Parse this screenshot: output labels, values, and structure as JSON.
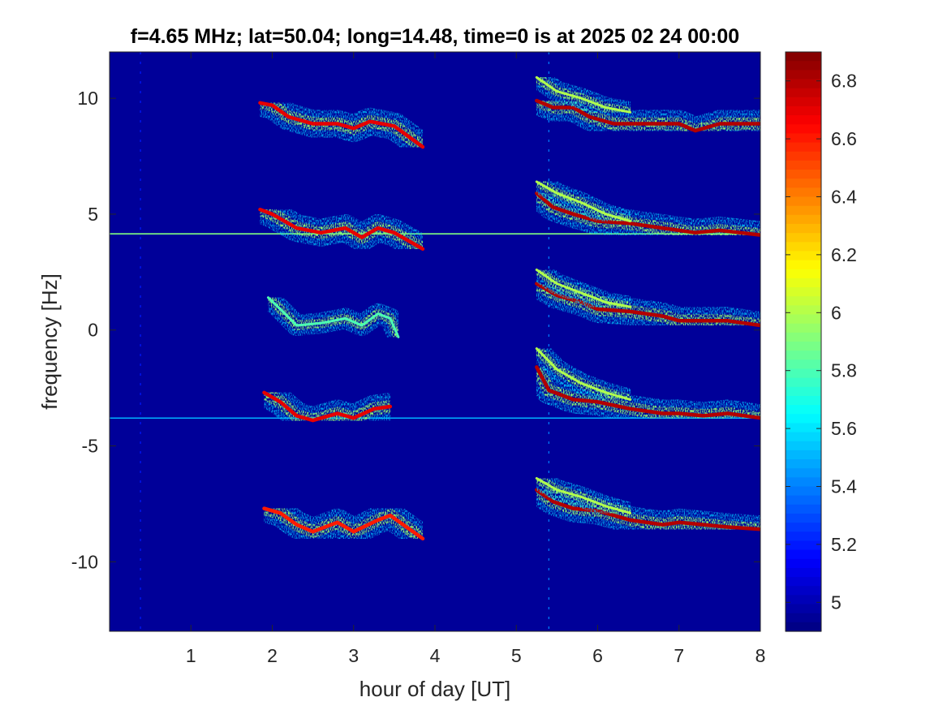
{
  "chart_data": {
    "type": "heatmap",
    "title": "f=4.65 MHz;  lat=50.04; long=14.48, time=0 is at 2025 02 24 00:00",
    "xlabel": "hour of day [UT]",
    "ylabel": "frequency [Hz]",
    "xlim": [
      0,
      8
    ],
    "ylim": [
      -13,
      12
    ],
    "x_ticks": [
      1,
      2,
      3,
      4,
      5,
      6,
      7,
      8
    ],
    "y_ticks": [
      10,
      5,
      0,
      -5,
      -10
    ],
    "colorbar": {
      "range": [
        4.9,
        6.9
      ],
      "ticks": [
        5,
        5.2,
        5.4,
        5.6,
        5.8,
        6,
        6.2,
        6.4,
        6.6,
        6.8
      ],
      "colormap": "jet"
    },
    "background_value": 4.95,
    "horizontal_lines": [
      {
        "y": 4.15,
        "value": 5.9
      },
      {
        "y": -3.8,
        "value": 5.5
      }
    ],
    "vertical_lines": [
      {
        "x": 5.4,
        "value": 5.4
      },
      {
        "x": 0.38,
        "value": 5.2
      }
    ],
    "traces": [
      {
        "name": "",
        "points": [
          [
            1.85,
            9.8
          ],
          [
            2.0,
            9.7
          ],
          [
            2.2,
            9.2
          ],
          [
            2.5,
            8.9
          ],
          [
            2.8,
            8.9
          ],
          [
            3.0,
            8.7
          ],
          [
            3.2,
            9.0
          ],
          [
            3.5,
            8.8
          ],
          [
            3.85,
            7.9
          ]
        ],
        "value": 6.7
      },
      {
        "name": "",
        "points": [
          [
            1.85,
            5.2
          ],
          [
            2.0,
            5.0
          ],
          [
            2.3,
            4.4
          ],
          [
            2.6,
            4.2
          ],
          [
            2.9,
            4.4
          ],
          [
            3.1,
            4.0
          ],
          [
            3.3,
            4.4
          ],
          [
            3.5,
            4.2
          ],
          [
            3.85,
            3.5
          ]
        ],
        "value": 6.7
      },
      {
        "name": "",
        "points": [
          [
            1.95,
            1.4
          ],
          [
            2.1,
            0.9
          ],
          [
            2.3,
            0.2
          ],
          [
            2.6,
            0.3
          ],
          [
            2.9,
            0.5
          ],
          [
            3.1,
            0.2
          ],
          [
            3.3,
            0.7
          ],
          [
            3.45,
            0.5
          ],
          [
            3.55,
            -0.3
          ]
        ],
        "value": 5.8
      },
      {
        "name": "",
        "points": [
          [
            1.9,
            -2.7
          ],
          [
            2.1,
            -3.1
          ],
          [
            2.3,
            -3.7
          ],
          [
            2.5,
            -3.9
          ],
          [
            2.8,
            -3.6
          ],
          [
            3.0,
            -3.8
          ],
          [
            3.25,
            -3.4
          ],
          [
            3.45,
            -3.3
          ]
        ],
        "value": 6.7
      },
      {
        "name": "",
        "points": [
          [
            1.9,
            -7.7
          ],
          [
            2.1,
            -7.9
          ],
          [
            2.3,
            -8.4
          ],
          [
            2.5,
            -8.7
          ],
          [
            2.8,
            -8.3
          ],
          [
            3.0,
            -8.7
          ],
          [
            3.3,
            -8.2
          ],
          [
            3.45,
            -8.0
          ],
          [
            3.85,
            -9.0
          ]
        ],
        "value": 6.6
      },
      {
        "name": "",
        "points": [
          [
            5.25,
            9.9
          ],
          [
            5.45,
            9.6
          ],
          [
            5.7,
            9.6
          ],
          [
            5.9,
            9.2
          ],
          [
            6.2,
            8.9
          ],
          [
            6.6,
            8.9
          ],
          [
            7.0,
            8.9
          ],
          [
            7.2,
            8.6
          ],
          [
            7.5,
            8.9
          ],
          [
            8.0,
            8.9
          ]
        ],
        "value": 6.8
      },
      {
        "name": "",
        "points": [
          [
            5.25,
            5.9
          ],
          [
            5.45,
            5.3
          ],
          [
            5.7,
            5.0
          ],
          [
            6.0,
            4.7
          ],
          [
            6.4,
            4.6
          ],
          [
            6.8,
            4.4
          ],
          [
            7.0,
            4.3
          ],
          [
            7.2,
            4.2
          ],
          [
            7.5,
            4.3
          ],
          [
            8.0,
            4.1
          ]
        ],
        "value": 6.8
      },
      {
        "name": "",
        "points": [
          [
            5.25,
            2.0
          ],
          [
            5.5,
            1.5
          ],
          [
            5.8,
            1.2
          ],
          [
            6.0,
            0.9
          ],
          [
            6.4,
            0.8
          ],
          [
            6.8,
            0.6
          ],
          [
            7.0,
            0.4
          ],
          [
            7.3,
            0.4
          ],
          [
            7.6,
            0.4
          ],
          [
            8.0,
            0.2
          ]
        ],
        "value": 6.8
      },
      {
        "name": "",
        "points": [
          [
            5.25,
            -1.6
          ],
          [
            5.4,
            -2.6
          ],
          [
            5.7,
            -3.0
          ],
          [
            6.0,
            -3.1
          ],
          [
            6.4,
            -3.4
          ],
          [
            6.8,
            -3.6
          ],
          [
            7.0,
            -3.6
          ],
          [
            7.3,
            -3.7
          ],
          [
            7.6,
            -3.6
          ],
          [
            8.0,
            -3.8
          ]
        ],
        "value": 6.8
      },
      {
        "name": "",
        "points": [
          [
            5.25,
            -6.9
          ],
          [
            5.45,
            -7.4
          ],
          [
            5.7,
            -7.7
          ],
          [
            6.0,
            -7.8
          ],
          [
            6.4,
            -8.2
          ],
          [
            6.8,
            -8.4
          ],
          [
            7.0,
            -8.3
          ],
          [
            7.3,
            -8.4
          ],
          [
            7.6,
            -8.5
          ],
          [
            8.0,
            -8.6
          ]
        ],
        "value": 6.8
      },
      {
        "name": "",
        "points": [
          [
            5.25,
            10.9
          ],
          [
            5.5,
            10.3
          ],
          [
            5.8,
            10.0
          ],
          [
            6.1,
            9.6
          ],
          [
            6.4,
            9.4
          ]
        ],
        "value": 6.0
      },
      {
        "name": "",
        "points": [
          [
            5.25,
            6.4
          ],
          [
            5.5,
            5.9
          ],
          [
            5.8,
            5.5
          ],
          [
            6.1,
            5.0
          ],
          [
            6.4,
            4.7
          ]
        ],
        "value": 6.0
      },
      {
        "name": "",
        "points": [
          [
            5.25,
            2.6
          ],
          [
            5.5,
            2.0
          ],
          [
            5.8,
            1.6
          ],
          [
            6.1,
            1.2
          ],
          [
            6.4,
            1.0
          ]
        ],
        "value": 6.0
      },
      {
        "name": "",
        "points": [
          [
            5.25,
            -0.8
          ],
          [
            5.5,
            -1.7
          ],
          [
            5.8,
            -2.3
          ],
          [
            6.1,
            -2.7
          ],
          [
            6.4,
            -3.0
          ]
        ],
        "value": 6.0
      },
      {
        "name": "",
        "points": [
          [
            5.25,
            -6.4
          ],
          [
            5.5,
            -6.9
          ],
          [
            5.8,
            -7.2
          ],
          [
            6.1,
            -7.6
          ],
          [
            6.4,
            -7.9
          ]
        ],
        "value": 6.0
      }
    ]
  }
}
